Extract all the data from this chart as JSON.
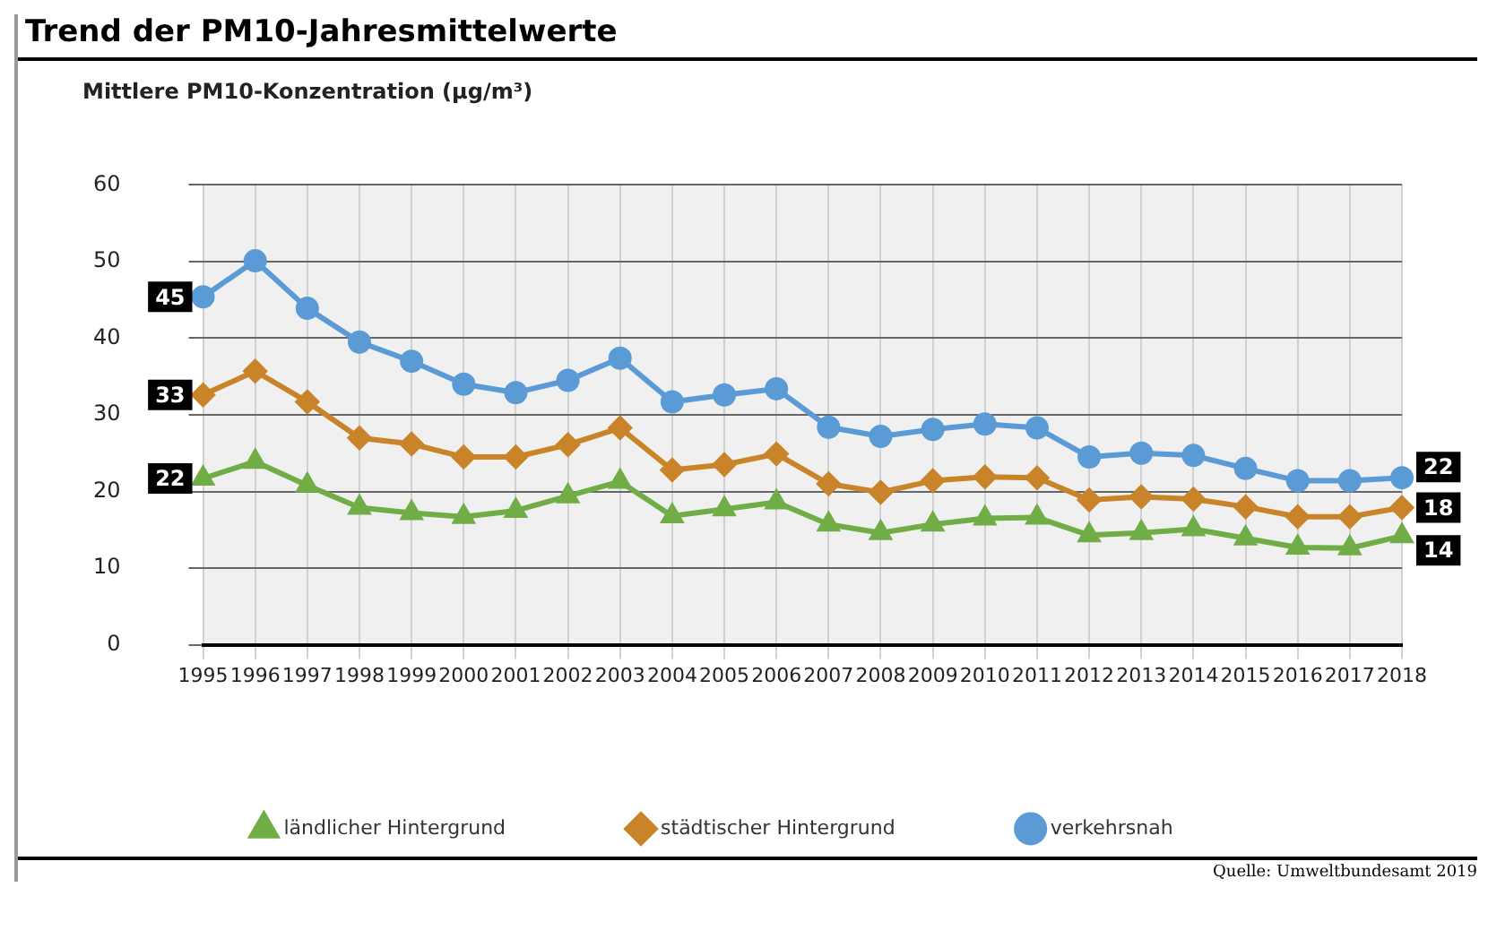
{
  "chart_data": {
    "type": "line",
    "title": "Trend der PM10-Jahresmittelwerte",
    "ylabel": "Mittlere PM10-Konzentration (µg/m³)",
    "categories": [
      "1995",
      "1996",
      "1997",
      "1998",
      "1999",
      "2000",
      "2001",
      "2002",
      "2003",
      "2004",
      "2005",
      "2006",
      "2007",
      "2008",
      "2009",
      "2010",
      "2011",
      "2012",
      "2013",
      "2014",
      "2015",
      "2016",
      "2017",
      "2018"
    ],
    "series": [
      {
        "name": "ländlicher Hintergrund",
        "color": "#70ad47",
        "marker": "triangle",
        "values": [
          21.7,
          23.9,
          20.8,
          17.9,
          17.2,
          16.7,
          17.5,
          19.4,
          21.3,
          16.8,
          17.7,
          18.6,
          15.7,
          14.6,
          15.7,
          16.5,
          16.6,
          14.3,
          14.6,
          15.1,
          13.9,
          12.7,
          12.6,
          14.2
        ],
        "value_labels": [
          "22",
          null,
          null,
          null,
          null,
          null,
          null,
          null,
          null,
          null,
          null,
          null,
          null,
          null,
          null,
          null,
          null,
          null,
          null,
          null,
          null,
          null,
          null,
          "14"
        ]
      },
      {
        "name": "städtischer Hintergrund",
        "color": "#c9842a",
        "marker": "diamond",
        "values": [
          32.6,
          35.7,
          31.7,
          27.0,
          26.2,
          24.5,
          24.5,
          26.1,
          28.3,
          22.8,
          23.5,
          24.9,
          21.0,
          19.9,
          21.4,
          21.9,
          21.8,
          18.9,
          19.3,
          19.0,
          18.0,
          16.7,
          16.7,
          17.9
        ],
        "value_labels": [
          "33",
          null,
          null,
          null,
          null,
          null,
          null,
          null,
          null,
          null,
          null,
          null,
          null,
          null,
          null,
          null,
          null,
          null,
          null,
          null,
          null,
          null,
          null,
          "18"
        ]
      },
      {
        "name": "verkehrsnah",
        "color": "#5b9bd5",
        "marker": "circle",
        "values": [
          45.4,
          50.1,
          43.9,
          39.5,
          37.0,
          34.0,
          32.9,
          34.5,
          37.4,
          31.7,
          32.6,
          33.4,
          28.4,
          27.2,
          28.1,
          28.8,
          28.3,
          24.5,
          25.0,
          24.7,
          23.0,
          21.4,
          21.4,
          21.8
        ],
        "value_labels": [
          "45",
          null,
          null,
          null,
          null,
          null,
          null,
          null,
          null,
          null,
          null,
          null,
          null,
          null,
          null,
          null,
          null,
          null,
          null,
          null,
          null,
          null,
          null,
          "22"
        ]
      }
    ],
    "ylim": [
      0,
      60
    ],
    "yticks": [
      0,
      10,
      20,
      30,
      40,
      50,
      60
    ],
    "grid": true,
    "legend": "bottom",
    "line_style": "solid",
    "annotations": [
      "Quelle: Umweltbundesamt 2019"
    ]
  }
}
